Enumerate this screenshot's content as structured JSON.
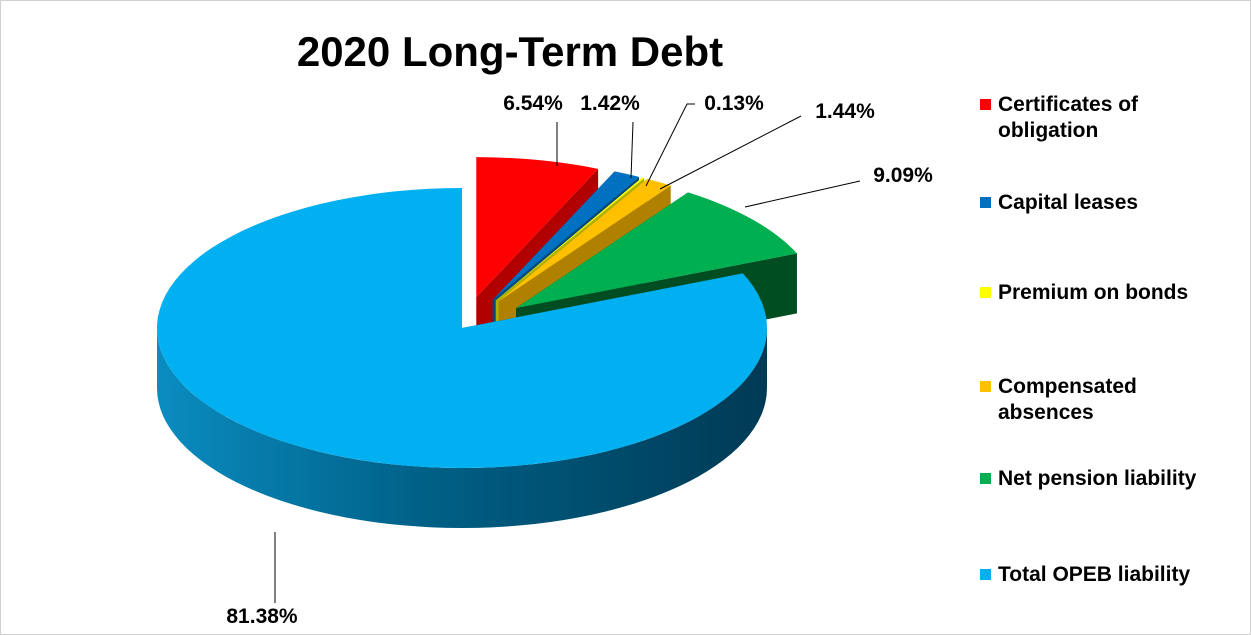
{
  "chart_data": {
    "type": "pie",
    "title": "2020 Long-Term Debt",
    "style": "3d-exploded",
    "legend_position": "right",
    "slices": [
      {
        "name": "Certificates of obligation",
        "value": 6.54,
        "label": "6.54%",
        "color": "#ff0000",
        "side_color": "#b00000"
      },
      {
        "name": "Capital leases",
        "value": 1.42,
        "label": "1.42%",
        "color": "#0070c0",
        "side_color": "#004a80"
      },
      {
        "name": "Premium on bonds",
        "value": 0.13,
        "label": "0.13%",
        "color": "#ffff00",
        "side_color": "#b0b000"
      },
      {
        "name": "Compensated absences",
        "value": 1.44,
        "label": "1.44%",
        "color": "#ffc000",
        "side_color": "#b08000"
      },
      {
        "name": "Net pension liability",
        "value": 9.09,
        "label": "9.09%",
        "color": "#00b050",
        "side_color": "#004d22"
      },
      {
        "name": "Total OPEB liability",
        "value": 81.38,
        "label": "81.38%",
        "color": "#00b0f0",
        "side_color": "#004a66"
      }
    ]
  }
}
